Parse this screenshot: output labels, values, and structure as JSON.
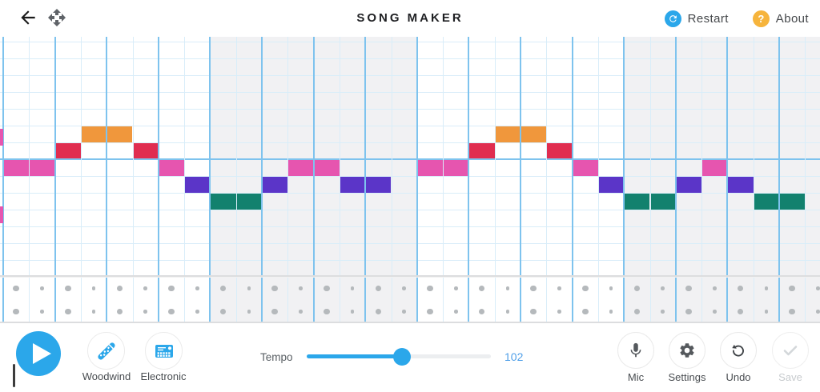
{
  "header": {
    "title": "SONG MAKER",
    "restart_label": "Restart",
    "about_label": "About"
  },
  "palette": {
    "accent_blue": "#2ba7ea",
    "about_yellow": "#f6b43c",
    "pink": "#e655af",
    "red": "#e02d50",
    "orange": "#f0973c",
    "purple": "#5b35c8",
    "teal": "#12816e",
    "bar_shade": "#f1f1f3",
    "beat_line": "#7ec3ee",
    "cell_line": "#d9edf9",
    "dot_gray": "#b5b9bc",
    "tempo_value_blue": "#4f9fe8"
  },
  "grid": {
    "columns": 32,
    "visible_note_rows": 14,
    "cols_per_bar": 8,
    "octave_line_row": 7,
    "notes": [
      {
        "c": 0,
        "r": 7,
        "color": "pink"
      },
      {
        "c": 1,
        "r": 7,
        "color": "pink"
      },
      {
        "c": 2,
        "r": 6,
        "color": "red"
      },
      {
        "c": 3,
        "r": 5,
        "color": "orange"
      },
      {
        "c": 4,
        "r": 5,
        "color": "orange"
      },
      {
        "c": 5,
        "r": 6,
        "color": "red"
      },
      {
        "c": 6,
        "r": 7,
        "color": "pink"
      },
      {
        "c": 7,
        "r": 8,
        "color": "purple"
      },
      {
        "c": 8,
        "r": 9,
        "color": "teal"
      },
      {
        "c": 9,
        "r": 9,
        "color": "teal"
      },
      {
        "c": 10,
        "r": 8,
        "color": "purple"
      },
      {
        "c": 11,
        "r": 7,
        "color": "pink"
      },
      {
        "c": 12,
        "r": 7,
        "color": "pink"
      },
      {
        "c": 13,
        "r": 8,
        "color": "purple"
      },
      {
        "c": 14,
        "r": 8,
        "color": "purple"
      },
      {
        "c": 16,
        "r": 7,
        "color": "pink"
      },
      {
        "c": 17,
        "r": 7,
        "color": "pink"
      },
      {
        "c": 18,
        "r": 6,
        "color": "red"
      },
      {
        "c": 19,
        "r": 5,
        "color": "orange"
      },
      {
        "c": 20,
        "r": 5,
        "color": "orange"
      },
      {
        "c": 21,
        "r": 6,
        "color": "red"
      },
      {
        "c": 22,
        "r": 7,
        "color": "pink"
      },
      {
        "c": 23,
        "r": 8,
        "color": "purple"
      },
      {
        "c": 24,
        "r": 9,
        "color": "teal"
      },
      {
        "c": 25,
        "r": 9,
        "color": "teal"
      },
      {
        "c": 26,
        "r": 8,
        "color": "purple"
      },
      {
        "c": 27,
        "r": 7,
        "color": "pink"
      },
      {
        "c": 28,
        "r": 8,
        "color": "purple"
      },
      {
        "c": 29,
        "r": 9,
        "color": "teal"
      },
      {
        "c": 30,
        "r": 9,
        "color": "teal"
      }
    ],
    "edge_markers": [
      {
        "r": 5.2,
        "color": "pink"
      },
      {
        "r": 9.8,
        "color": "pink"
      }
    ]
  },
  "percussion": {
    "rows": 2,
    "columns": 32,
    "large_dot_columns": "even",
    "small_dot_columns": "odd"
  },
  "controls": {
    "melody_instrument": "Woodwind",
    "rhythm_instrument": "Electronic",
    "tempo_label": "Tempo",
    "tempo_value": "102",
    "mic_label": "Mic",
    "settings_label": "Settings",
    "undo_label": "Undo",
    "save_label": "Save"
  }
}
